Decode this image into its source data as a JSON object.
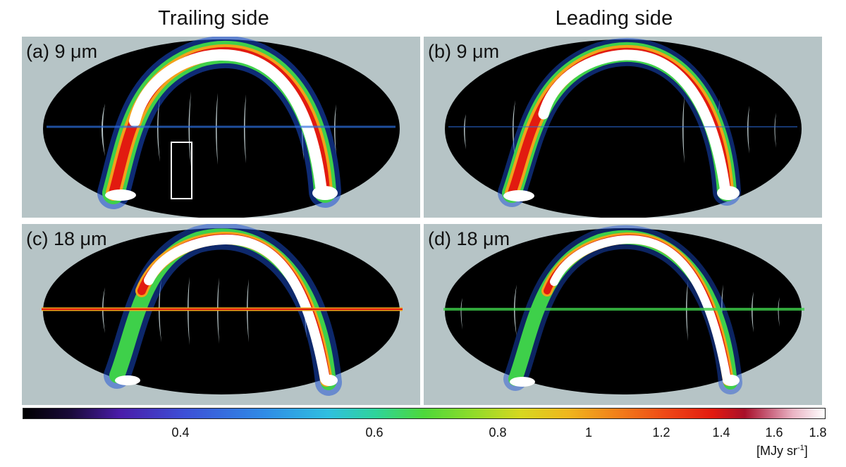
{
  "columns": {
    "left_title": "Trailing side",
    "right_title": "Leading side"
  },
  "panels": [
    {
      "label": "(a) 9 μm"
    },
    {
      "label": "(b) 9 μm"
    },
    {
      "label": "(c) 18 μm"
    },
    {
      "label": "(d) 18 μm"
    }
  ],
  "colorbar": {
    "ticks": [
      "0.4",
      "0.6",
      "0.8",
      "1",
      "1.2",
      "1.4",
      "1.6",
      "1.8"
    ],
    "unit_prefix": "[MJy sr",
    "unit_exp": "-1",
    "unit_suffix": "]"
  },
  "colors": {
    "panel_bg": "#b6c4c6",
    "map_bg": "#000000",
    "box": "#ffffff"
  }
}
